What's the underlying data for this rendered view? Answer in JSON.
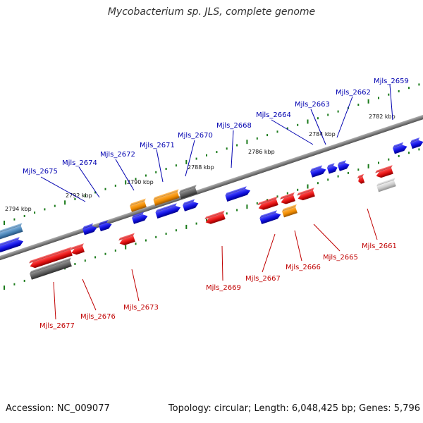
{
  "title": "Mycobacterium sp. JLS, complete genome",
  "footer": {
    "accession": "Accession: NC_009077",
    "summary": "Topology: circular; Length: 6,048,425 bp; Genes: 5,796"
  },
  "colors": {
    "forward": "#1010e0",
    "reverse": "#e01010",
    "rna": "#f08c00",
    "pseudo": "#666666",
    "other": "#4682b4",
    "pale": "#c8c8c8",
    "tick": "#1a7a1a",
    "backbone": "#808080",
    "label_forward": "#0000b0",
    "label_reverse": "#c00000"
  },
  "scale_labels": [
    "2794 kbp",
    "2792 kbp",
    "2790 kbp",
    "2788 kbp",
    "2786 kbp",
    "2784 kbp",
    "2782 kbp"
  ],
  "gene_labels_top": [
    "Mjls_2675",
    "Mjls_2674",
    "Mjls_2672",
    "Mjls_2671",
    "Mjls_2670",
    "Mjls_2668",
    "Mjls_2664",
    "Mjls_2663",
    "Mjls_2662",
    "Mjls_2659"
  ],
  "gene_labels_bottom": [
    "Mjls_2677",
    "Mjls_2676",
    "Mjls_2673",
    "Mjls_2669",
    "Mjls_2667",
    "Mjls_2666",
    "Mjls_2665",
    "Mjls_2661"
  ]
}
